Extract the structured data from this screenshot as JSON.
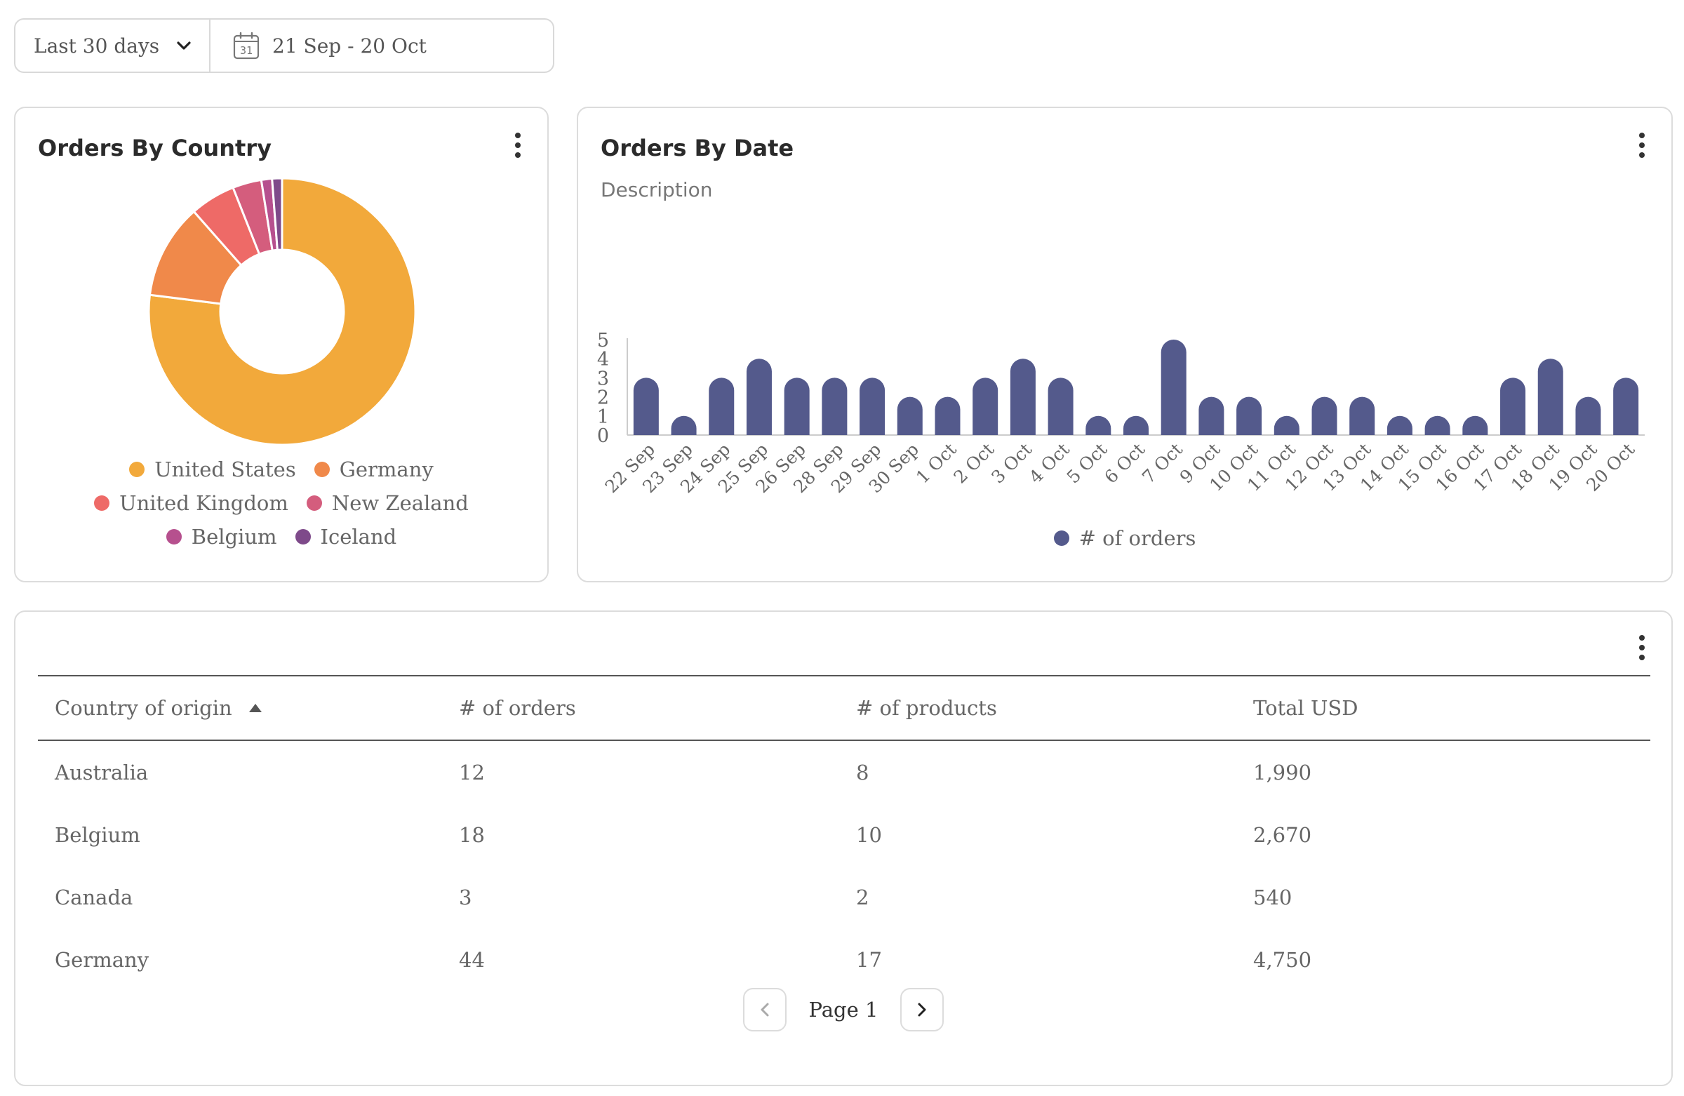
{
  "filters": {
    "range_value": "Last 30 days",
    "date_range": "21 Sep - 20 Oct",
    "calendar_day": "31"
  },
  "orders_by_country": {
    "title": "Orders By Country",
    "chart_data": {
      "type": "pie",
      "labels": [
        "United States",
        "Germany",
        "United Kingdom",
        "New Zealand",
        "Belgium",
        "Iceland"
      ],
      "values": [
        77,
        11.5,
        5.5,
        3.5,
        1.3,
        1.2
      ],
      "colors": [
        "#f2a93b",
        "#f0894a",
        "#ee6a67",
        "#d45d7d",
        "#b6508e",
        "#7e4a8a"
      ],
      "legend": "bottom"
    }
  },
  "orders_by_date": {
    "title": "Orders By Date",
    "description": "Description",
    "chart_data": {
      "type": "bar",
      "categories": [
        "22 Sep",
        "23 Sep",
        "24 Sep",
        "25 Sep",
        "26 Sep",
        "28 Sep",
        "29 Sep",
        "30 Sep",
        "1 Oct",
        "2 Oct",
        "3 Oct",
        "4 Oct",
        "5 Oct",
        "6 Oct",
        "7 Oct",
        "9 Oct",
        "10 Oct",
        "11 Oct",
        "12 Oct",
        "13 Oct",
        "14 Oct",
        "15 Oct",
        "16 Oct",
        "17 Oct",
        "18 Oct",
        "19 Oct",
        "20 Oct"
      ],
      "series": [
        {
          "name": "# of orders",
          "values": [
            3,
            1,
            3,
            4,
            3,
            3,
            3,
            2,
            2,
            3,
            4,
            3,
            1,
            1,
            5,
            2,
            2,
            1,
            2,
            2,
            1,
            1,
            1,
            3,
            4,
            2,
            3
          ],
          "color": "#545a8c"
        }
      ],
      "yticks": [
        "0",
        "1",
        "2",
        "3",
        "4",
        "5"
      ],
      "ylim": [
        0,
        5
      ],
      "grid": false,
      "legend": "bottom"
    }
  },
  "orders_table": {
    "columns": [
      "Country of origin",
      "# of orders",
      "# of products",
      "Total USD"
    ],
    "rows": [
      [
        "Australia",
        "12",
        "8",
        "1,990"
      ],
      [
        "Belgium",
        "18",
        "10",
        "2,670"
      ],
      [
        "Canada",
        "3",
        "2",
        "540"
      ],
      [
        "Germany",
        "44",
        "17",
        "4,750"
      ]
    ],
    "page_label": "Page 1"
  }
}
